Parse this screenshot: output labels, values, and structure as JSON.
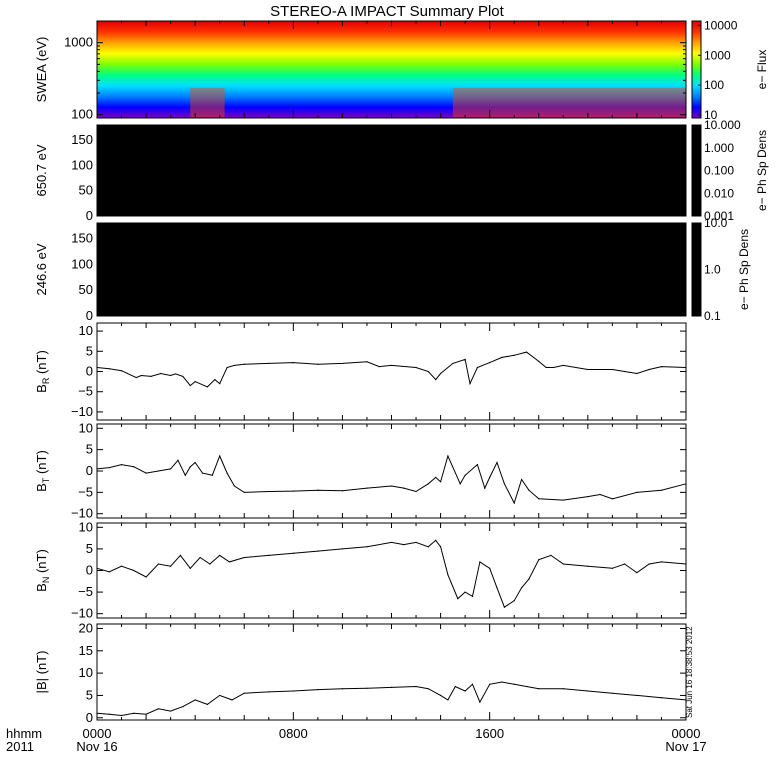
{
  "title": "STEREO-A IMPACT Summary Plot",
  "footer": {
    "left_line1": "hhmm",
    "left_line2": "2011",
    "ticks": [
      {
        "time": "0000",
        "date": "Nov 16",
        "frac": 0.0
      },
      {
        "time": "0800",
        "date": "",
        "frac": 0.3333
      },
      {
        "time": "1600",
        "date": "",
        "frac": 0.6667
      },
      {
        "time": "0000",
        "date": "Nov 17",
        "frac": 1.0
      }
    ]
  },
  "stamp": "Sat Jun 16 18:38:53 2012",
  "colors": {
    "axis": "#000000",
    "line": "#000000",
    "panel_fill": "#000000",
    "colorbar_stops": [
      "#8000c0",
      "#0000ff",
      "#0080ff",
      "#00e0ff",
      "#00ff80",
      "#80ff00",
      "#ffff00",
      "#ffa000",
      "#ff3000",
      "#e00000"
    ]
  },
  "chart_data": [
    {
      "type": "heatmap",
      "id": "swea",
      "ylabel": "SWEA (eV)",
      "yscale": "log",
      "ylim": [
        90,
        2000
      ],
      "yticks": [
        {
          "v": 100,
          "t": "100"
        },
        {
          "v": 1000,
          "t": "1000"
        }
      ],
      "colorbar": {
        "label": "e− Flux",
        "scale": "log",
        "range": [
          8,
          14000
        ],
        "ticks": [
          {
            "v": 10,
            "t": "10"
          },
          {
            "v": 100,
            "t": "100"
          },
          {
            "v": 1000,
            "t": "1000"
          },
          {
            "v": 10000,
            "t": "10000"
          }
        ]
      },
      "xlim": [
        0,
        24
      ]
    },
    {
      "type": "heatmap",
      "id": "pad650",
      "ylabel": "650.7 eV",
      "ylim": [
        0,
        180
      ],
      "yticks": [
        {
          "v": 0,
          "t": "0"
        },
        {
          "v": 50,
          "t": "50"
        },
        {
          "v": 100,
          "t": "100"
        },
        {
          "v": 150,
          "t": "150"
        }
      ],
      "colorbar": {
        "label": "e− Ph Sp Dens",
        "scale": "log",
        "range": [
          0.001,
          10
        ],
        "ticks": [
          {
            "v": 0.001,
            "t": "0.001"
          },
          {
            "v": 0.01,
            "t": "0.010"
          },
          {
            "v": 0.1,
            "t": "0.100"
          },
          {
            "v": 1,
            "t": "1.000"
          },
          {
            "v": 10,
            "t": "10.000"
          }
        ]
      },
      "xlim": [
        0,
        24
      ]
    },
    {
      "type": "heatmap",
      "id": "pad246",
      "ylabel": "246.6 eV",
      "ylim": [
        0,
        180
      ],
      "yticks": [
        {
          "v": 0,
          "t": "0"
        },
        {
          "v": 50,
          "t": "50"
        },
        {
          "v": 100,
          "t": "100"
        },
        {
          "v": 150,
          "t": "150"
        }
      ],
      "colorbar": {
        "label": "e− Ph Sp Dens",
        "scale": "log",
        "range": [
          0.1,
          10
        ],
        "ticks": [
          {
            "v": 0.1,
            "t": "0.1"
          },
          {
            "v": 1,
            "t": "1.0"
          },
          {
            "v": 10,
            "t": "10.0"
          }
        ]
      },
      "xlim": [
        0,
        24
      ]
    },
    {
      "type": "line",
      "id": "br",
      "ylabel": "B",
      "ysub": "R",
      "yunit": "(nT)",
      "ylim": [
        -12,
        12
      ],
      "yticks": [
        {
          "v": -10,
          "t": "−10"
        },
        {
          "v": -5,
          "t": "−5"
        },
        {
          "v": 0,
          "t": "0"
        },
        {
          "v": 5,
          "t": "5"
        },
        {
          "v": 10,
          "t": "10"
        }
      ],
      "xlim": [
        0,
        24
      ],
      "x": [
        0,
        0.5,
        1.0,
        1.6,
        1.8,
        2.2,
        2.6,
        3.0,
        3.2,
        3.5,
        3.8,
        4.0,
        4.5,
        4.8,
        5.0,
        5.3,
        5.6,
        6.0,
        7.0,
        8.0,
        9.0,
        10.0,
        11.0,
        11.5,
        12.0,
        13.0,
        13.5,
        13.8,
        14.0,
        14.5,
        15.0,
        15.2,
        15.5,
        16.0,
        16.5,
        17.0,
        17.5,
        18.0,
        18.3,
        18.6,
        19.0,
        20.0,
        21.0,
        21.5,
        22.0,
        22.5,
        23.0,
        24.0
      ],
      "y": [
        1.0,
        0.7,
        0.2,
        -1.5,
        -1.0,
        -1.2,
        -0.5,
        -1.0,
        -0.6,
        -1.2,
        -3.5,
        -2.5,
        -3.8,
        -2.0,
        -3.0,
        1.0,
        1.5,
        1.8,
        2.0,
        2.2,
        1.8,
        2.0,
        2.4,
        1.2,
        1.5,
        1.0,
        0.0,
        -2.0,
        -0.5,
        2.0,
        3.0,
        -3.0,
        1.0,
        2.2,
        3.5,
        4.0,
        4.8,
        2.5,
        1.0,
        1.0,
        1.5,
        0.5,
        0.5,
        0.0,
        -0.5,
        0.5,
        1.2,
        1.0
      ]
    },
    {
      "type": "line",
      "id": "bt",
      "ylabel": "B",
      "ysub": "T",
      "yunit": "(nT)",
      "ylim": [
        -11,
        11
      ],
      "yticks": [
        {
          "v": -10,
          "t": "−10"
        },
        {
          "v": -5,
          "t": "−5"
        },
        {
          "v": 0,
          "t": "0"
        },
        {
          "v": 5,
          "t": "5"
        },
        {
          "v": 10,
          "t": "10"
        }
      ],
      "xlim": [
        0,
        24
      ],
      "x": [
        0,
        0.5,
        1.0,
        1.5,
        2.0,
        2.5,
        3.0,
        3.3,
        3.6,
        3.8,
        4.0,
        4.3,
        4.7,
        5.0,
        5.3,
        5.6,
        6.0,
        7.0,
        8.0,
        9.0,
        10.0,
        11.0,
        12.0,
        12.5,
        13.0,
        13.5,
        13.8,
        14.0,
        14.3,
        14.8,
        15.0,
        15.5,
        15.8,
        16.0,
        16.3,
        16.6,
        17.0,
        17.3,
        17.6,
        18.0,
        19.0,
        20.0,
        20.5,
        21.0,
        22.0,
        23.0,
        24.0
      ],
      "y": [
        0.5,
        0.8,
        1.5,
        1.0,
        -0.5,
        0.0,
        0.5,
        2.5,
        -1.0,
        1.0,
        2.0,
        -0.5,
        -1.0,
        3.5,
        -0.5,
        -3.5,
        -5.0,
        -4.8,
        -4.7,
        -4.5,
        -4.6,
        -4.0,
        -3.5,
        -4.0,
        -4.8,
        -3.0,
        -1.5,
        -2.5,
        3.5,
        -3.0,
        -1.0,
        1.5,
        -4.0,
        -1.5,
        2.0,
        -3.0,
        -7.5,
        -2.0,
        -4.5,
        -6.5,
        -6.8,
        -6.0,
        -5.5,
        -6.5,
        -5.0,
        -4.5,
        -3.0
      ]
    },
    {
      "type": "line",
      "id": "bn",
      "ylabel": "B",
      "ysub": "N",
      "yunit": "(nT)",
      "ylim": [
        -11,
        11
      ],
      "yticks": [
        {
          "v": -10,
          "t": "−10"
        },
        {
          "v": -5,
          "t": "−5"
        },
        {
          "v": 0,
          "t": "0"
        },
        {
          "v": 5,
          "t": "5"
        },
        {
          "v": 10,
          "t": "10"
        }
      ],
      "xlim": [
        0,
        24
      ],
      "x": [
        0,
        0.5,
        1.0,
        1.5,
        2.0,
        2.5,
        3.0,
        3.4,
        3.8,
        4.2,
        4.6,
        5.0,
        5.4,
        6.0,
        7.0,
        8.0,
        9.0,
        10.0,
        11.0,
        12.0,
        12.5,
        13.0,
        13.5,
        13.8,
        14.0,
        14.3,
        14.7,
        15.0,
        15.3,
        15.6,
        16.0,
        16.3,
        16.6,
        17.0,
        17.3,
        17.6,
        18.0,
        18.5,
        19.0,
        20.0,
        21.0,
        21.5,
        22.0,
        22.5,
        23.0,
        24.0
      ],
      "y": [
        0.5,
        -0.3,
        1.0,
        0.0,
        -1.5,
        1.5,
        1.0,
        3.5,
        0.5,
        3.0,
        1.5,
        3.5,
        2.0,
        3.0,
        3.5,
        4.0,
        4.5,
        5.0,
        5.5,
        6.5,
        6.0,
        6.5,
        5.5,
        7.0,
        5.5,
        -1.0,
        -6.5,
        -5.0,
        -6.0,
        2.0,
        0.5,
        -4.0,
        -8.5,
        -7.0,
        -4.0,
        -2.0,
        2.5,
        3.5,
        1.5,
        1.0,
        0.5,
        1.5,
        -0.5,
        1.5,
        2.0,
        1.5
      ]
    },
    {
      "type": "line",
      "id": "bmag",
      "ylabel": "|B|",
      "ysub": "",
      "yunit": "(nT)",
      "ylim": [
        -0.5,
        21
      ],
      "yticks": [
        {
          "v": 0,
          "t": "0"
        },
        {
          "v": 5,
          "t": "5"
        },
        {
          "v": 10,
          "t": "10"
        },
        {
          "v": 15,
          "t": "15"
        },
        {
          "v": 20,
          "t": "20"
        }
      ],
      "xlim": [
        0,
        24
      ],
      "x": [
        0,
        0.5,
        1.0,
        1.5,
        2.0,
        2.5,
        3.0,
        3.5,
        4.0,
        4.5,
        5.0,
        5.5,
        6.0,
        7.0,
        8.0,
        9.0,
        10.0,
        11.0,
        12.0,
        13.0,
        13.5,
        14.0,
        14.3,
        14.6,
        15.0,
        15.3,
        15.6,
        16.0,
        16.5,
        17.0,
        17.5,
        18.0,
        19.0,
        20.0,
        21.0,
        22.0,
        23.0,
        24.0
      ],
      "y": [
        1.0,
        0.8,
        0.5,
        1.0,
        0.8,
        2.0,
        1.5,
        2.5,
        4.0,
        3.0,
        5.0,
        4.0,
        5.5,
        5.8,
        6.0,
        6.3,
        6.5,
        6.6,
        6.8,
        7.0,
        6.5,
        5.0,
        4.0,
        7.0,
        6.0,
        7.5,
        3.5,
        7.5,
        8.0,
        7.5,
        7.0,
        6.5,
        6.5,
        6.0,
        5.5,
        5.0,
        4.5,
        4.0
      ]
    }
  ]
}
